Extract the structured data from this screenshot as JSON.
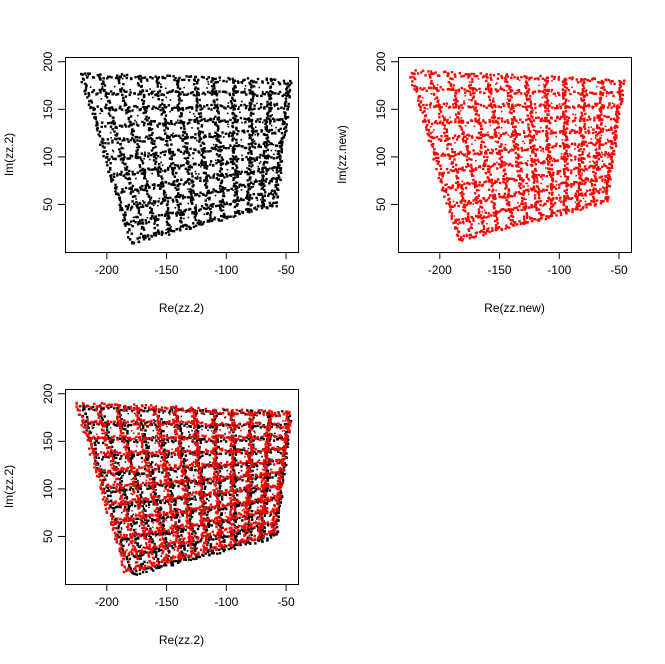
{
  "chart_data": [
    {
      "type": "scatter",
      "title": "",
      "xlabel": "Re(zz.2)",
      "ylabel": "Im(zz.2)",
      "xlim": [
        -235,
        -40
      ],
      "ylim": [
        0,
        205
      ],
      "xticks": [
        -200,
        -150,
        -100,
        -50
      ],
      "yticks": [
        50,
        100,
        150,
        200
      ],
      "series": [
        {
          "color": "#000000",
          "description": "warped 11x10 grid mesh",
          "corners": {
            "top_left": [
              -222,
              187
            ],
            "top_right": [
              -48,
              180
            ],
            "bottom_right": [
              -60,
              52
            ],
            "bottom_left": [
              -180,
              12
            ]
          }
        }
      ]
    },
    {
      "type": "scatter",
      "title": "",
      "xlabel": "Re(zz.new)",
      "ylabel": "Im(zz.new)",
      "xlim": [
        -235,
        -40
      ],
      "ylim": [
        0,
        205
      ],
      "xticks": [
        -200,
        -150,
        -100,
        -50
      ],
      "yticks": [
        50,
        100,
        150,
        200
      ],
      "series": [
        {
          "color": "#ff0000",
          "description": "warped 11x10 grid mesh",
          "corners": {
            "top_left": [
              -225,
              190
            ],
            "top_right": [
              -48,
              180
            ],
            "bottom_right": [
              -62,
              55
            ],
            "bottom_left": [
              -185,
              15
            ]
          }
        }
      ]
    },
    {
      "type": "scatter",
      "title": "",
      "xlabel": "Re(zz.2)",
      "ylabel": "Im(zz.2)",
      "xlim": [
        -235,
        -40
      ],
      "ylim": [
        0,
        205
      ],
      "xticks": [
        -200,
        -150,
        -100,
        -50
      ],
      "yticks": [
        50,
        100,
        150,
        200
      ],
      "series": [
        {
          "color": "#000000",
          "description": "warped 11x10 grid mesh",
          "corners": {
            "top_left": [
              -222,
              187
            ],
            "top_right": [
              -48,
              180
            ],
            "bottom_right": [
              -60,
              52
            ],
            "bottom_left": [
              -180,
              12
            ]
          }
        },
        {
          "color": "#ff0000",
          "description": "warped 11x10 grid mesh (overlay)",
          "corners": {
            "top_left": [
              -225,
              190
            ],
            "top_right": [
              -48,
              180
            ],
            "bottom_right": [
              -62,
              55
            ],
            "bottom_left": [
              -185,
              15
            ]
          }
        }
      ]
    }
  ]
}
